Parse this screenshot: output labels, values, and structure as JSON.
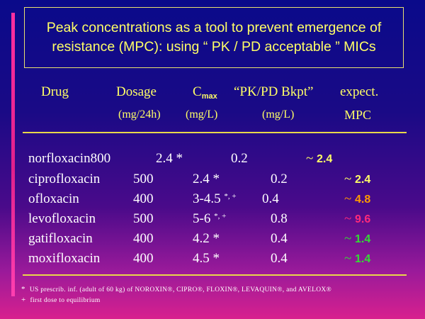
{
  "title": {
    "line1": "Peak concentrations as a tool to prevent emergence of",
    "line2": "resistance (MPC):  using “ PK / PD acceptable ” MICs"
  },
  "headers": {
    "drug": "Drug",
    "dosage": "Dosage",
    "dosage_unit": "(mg/24h)",
    "cmax_main": "C",
    "cmax_sub": "max",
    "cmax_unit": "(mg/L)",
    "pkpd": "“PK/PD Bkpt”",
    "pkpd_unit": "(mg/L)",
    "mpc_line1": "expect.",
    "mpc_line2": "MPC"
  },
  "rows": [
    {
      "drug": "norfloxacin",
      "dose": "800",
      "cmax": "2.4",
      "cmax_sup": "*",
      "bkpt": "0.2",
      "mpc_prefix": "~",
      "mpc_value": "2.4",
      "mpc_color": "#ffff66"
    },
    {
      "drug": "ciprofloxacin",
      "dose": "500",
      "cmax": "2.4",
      "cmax_sup": "*",
      "bkpt": "0.2",
      "mpc_prefix": "~",
      "mpc_value": "2.4",
      "mpc_color": "#ffff66"
    },
    {
      "drug": "ofloxacin",
      "dose": "400",
      "cmax": "3-4.5",
      "cmax_sup": "*, +",
      "bkpt": "0.4",
      "mpc_prefix": "~",
      "mpc_value": "4.8",
      "mpc_color": "#ff9a00"
    },
    {
      "drug": "levofloxacin",
      "dose": "500",
      "cmax": "5-6",
      "cmax_sup": "*, +",
      "bkpt": "0.8",
      "mpc_prefix": "~",
      "mpc_value": "9.6",
      "mpc_color": "#ff2a7a"
    },
    {
      "drug": "gatifloxacin",
      "dose": "400",
      "cmax": "4.2",
      "cmax_sup": "*",
      "bkpt": "0.4",
      "mpc_prefix": "~",
      "mpc_value": "1.4",
      "mpc_color": "#33dd33"
    },
    {
      "drug": "moxifloxacin",
      "dose": "400",
      "cmax": "4.5",
      "cmax_sup": "*",
      "bkpt": "0.4",
      "mpc_prefix": "~",
      "mpc_value": "1.4",
      "mpc_color": "#33dd33"
    }
  ],
  "footnotes": [
    {
      "mark": "*",
      "text": "US prescrib. inf. (adult of 60 kg) of NOROXIN®, CIPRO®, FLOXIN®, LEVAQUIN®, and AVELOX®"
    },
    {
      "mark": "+",
      "text": "first dose to equilibrium"
    }
  ]
}
